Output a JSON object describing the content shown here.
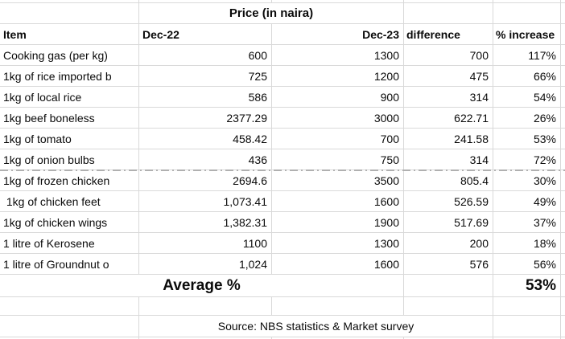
{
  "colors": {
    "grid": "#d9d9d9",
    "text": "#0a0a0a",
    "page_break": "#b0b0b0"
  },
  "table": {
    "title": "Price (in naira)",
    "columns": [
      "Item",
      "Dec-22",
      "Dec-23",
      "difference",
      "% increase"
    ],
    "rows": [
      {
        "item": "Cooking gas (per kg)",
        "dec22": "600",
        "dec23": "1300",
        "difference": "700",
        "increase": "117%"
      },
      {
        "item": "1kg of rice imported b",
        "dec22": "725",
        "dec23": "1200",
        "difference": "475",
        "increase": "66%"
      },
      {
        "item": "1kg of local rice",
        "dec22": "586",
        "dec23": "900",
        "difference": "314",
        "increase": "54%"
      },
      {
        "item": "1kg beef boneless",
        "dec22": "2377.29",
        "dec23": "3000",
        "difference": "622.71",
        "increase": "26%"
      },
      {
        "item": "1kg of tomato",
        "dec22": "458.42",
        "dec23": "700",
        "difference": "241.58",
        "increase": "53%"
      },
      {
        "item": "1kg of onion bulbs",
        "dec22": "436",
        "dec23": "750",
        "difference": "314",
        "increase": "72%"
      },
      {
        "item": "1kg of frozen chicken",
        "dec22": "2694.6",
        "dec23": "3500",
        "difference": "805.4",
        "increase": "30%"
      },
      {
        "item": " 1kg of chicken feet",
        "dec22": "1,073.41",
        "dec23": "1600",
        "difference": "526.59",
        "increase": "49%"
      },
      {
        "item": "1kg of chicken wings",
        "dec22": "1,382.31",
        "dec23": "1900",
        "difference": "517.69",
        "increase": "37%"
      },
      {
        "item": "1 litre of Kerosene",
        "dec22": "1100",
        "dec23": "1300",
        "difference": "200",
        "increase": "18%"
      },
      {
        "item": "1 litre of Groundnut o",
        "dec22": "1,024",
        "dec23": "1600",
        "difference": "576",
        "increase": "56%"
      }
    ],
    "average_label": "Average %",
    "average_value": "53%",
    "source": "Source: NBS statistics & Market survey"
  }
}
